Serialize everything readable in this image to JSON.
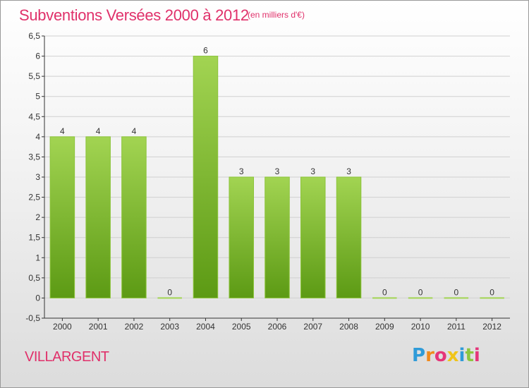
{
  "header": {
    "title": "Subventions Versées 2000 à 2012",
    "unit": "(en milliers d'€)"
  },
  "footer": {
    "place": "VILLARGENT",
    "logo": [
      "P",
      "r",
      "o",
      "x",
      "i",
      "t",
      "i"
    ],
    "logo_colors": [
      "#2f9bd8",
      "#f08a1d",
      "#e5357a",
      "#f0c419",
      "#2f9bd8",
      "#8cc63f",
      "#e5357a"
    ]
  },
  "colors": {
    "title": "#e0306a",
    "bar_top": "#a2d452",
    "bar_bottom": "#5c9a14",
    "grid": "#d0d0d0",
    "axis": "#333333"
  },
  "chart_data": {
    "type": "bar",
    "categories": [
      "2000",
      "2001",
      "2002",
      "2003",
      "2004",
      "2005",
      "2006",
      "2007",
      "2008",
      "2009",
      "2010",
      "2011",
      "2012"
    ],
    "values": [
      4,
      4,
      4,
      0,
      6,
      3,
      3,
      3,
      3,
      0,
      0,
      0,
      0
    ],
    "ylim": [
      -0.5,
      6.5
    ],
    "yticks": [
      "-0,5",
      "0",
      "0,5",
      "1",
      "1,5",
      "2",
      "2,5",
      "3",
      "3,5",
      "4",
      "4,5",
      "5",
      "5,5",
      "6",
      "6,5"
    ],
    "ytick_values": [
      -0.5,
      0,
      0.5,
      1,
      1.5,
      2,
      2.5,
      3,
      3.5,
      4,
      4.5,
      5,
      5.5,
      6,
      6.5
    ],
    "grid": true
  }
}
